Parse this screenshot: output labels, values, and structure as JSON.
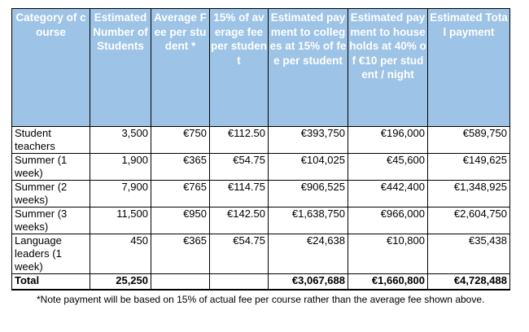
{
  "table": {
    "headers": [
      "Category of course",
      "Estimated Number of Students",
      "Average Fee per student *",
      "15% of average fee per student",
      "Estimated payment to colleges at 15% of fee per student",
      "Estimated payment to households at 40% of €10 per student / night",
      "Estimated Total payment"
    ],
    "rows": [
      [
        "Student teachers",
        "3,500",
        "€750",
        "€112.50",
        "€393,750",
        "€196,000",
        "€589,750"
      ],
      [
        "Summer (1 week)",
        "1,900",
        "€365",
        "€54.75",
        "€104,025",
        "€45,600",
        "€149,625"
      ],
      [
        "Summer (2 weeks)",
        "7,900",
        "€765",
        "€114.75",
        "€906,525",
        "€442,400",
        "€1,348,925"
      ],
      [
        "Summer (3 weeks)",
        "11,500",
        "€950",
        "€142.50",
        "€1,638,750",
        "€966,000",
        "€2,604,750"
      ],
      [
        "Language leaders (1 week)",
        "450",
        "€365",
        "€54.75",
        "€24,638",
        "€10,800",
        "€35,438"
      ]
    ],
    "total": [
      "Total",
      "25,250",
      "",
      "",
      "€3,067,688",
      "€1,660,800",
      "€4,728,488"
    ]
  },
  "note": "*Note payment will be based on 15% of actual fee per course rather than the average fee shown above.",
  "colors": {
    "header_bg": "#9dc3e6",
    "header_text": "#ffffff"
  }
}
